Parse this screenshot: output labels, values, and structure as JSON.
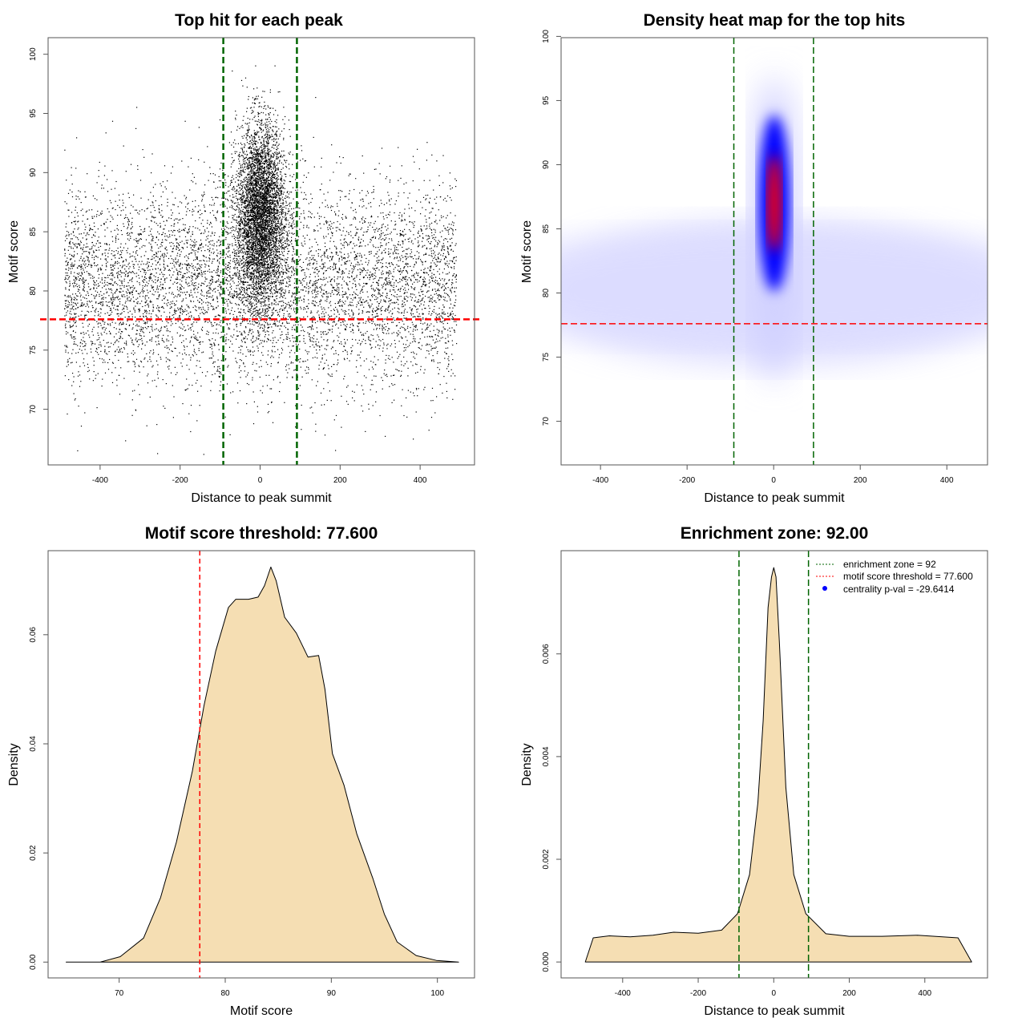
{
  "chart_data": [
    {
      "type": "scatter",
      "title": "Top hit for each peak",
      "xlabel": "Distance to peak summit",
      "ylabel": "Motif score",
      "xlim": [
        -530,
        536
      ],
      "ylim": [
        65.3,
        101.4
      ],
      "xticks": [
        -400,
        -200,
        0,
        200,
        400
      ],
      "yticks": [
        70,
        75,
        80,
        85,
        90,
        95,
        100
      ],
      "vlines": {
        "values": [
          -92,
          92
        ],
        "color": "#006400",
        "style": "dashed"
      },
      "hline": {
        "value": 77.6,
        "color": "#ff0000",
        "style": "dashed"
      }
    },
    {
      "type": "heatmap",
      "title": "Density heat map for the top hits",
      "xlabel": "Distance to peak summit",
      "ylabel": "Motif score",
      "xlim": [
        -491,
        494
      ],
      "ylim": [
        66.6,
        99.9
      ],
      "xticks": [
        -400,
        -200,
        0,
        200,
        400
      ],
      "yticks": [
        70,
        75,
        80,
        85,
        90,
        95,
        100
      ],
      "colors": [
        "#ffffff",
        "#0000ff",
        "#ff0000"
      ],
      "peak": {
        "x": 0,
        "y": 88.5
      },
      "vlines": {
        "values": [
          -92,
          92
        ],
        "color": "#006400",
        "style": "dashed"
      },
      "hline": {
        "value": 77.6,
        "color": "#ff0000",
        "style": "dashed"
      }
    },
    {
      "type": "area",
      "title": "Motif score threshold: 77.600",
      "xlabel": "Motif score",
      "ylabel": "Density",
      "xlim": [
        63.3,
        103.5
      ],
      "ylim": [
        -0.0029,
        0.0754
      ],
      "xticks": [
        70,
        80,
        90,
        100
      ],
      "yticks": [
        "0.00",
        "0.02",
        "0.04",
        "0.06"
      ],
      "fill": "#f5deb3",
      "x": [
        65,
        68.2,
        70.1,
        72.3,
        73.9,
        75.4,
        76.9,
        78,
        79.1,
        80.3,
        81,
        82.2,
        83.1,
        83.7,
        84.3,
        84.8,
        85.6,
        86.7,
        87.8,
        88.8,
        89.4,
        90.1,
        91.2,
        92.4,
        93.9,
        95,
        96.2,
        98,
        99.9,
        102
      ],
      "y": [
        0,
        0,
        0.001,
        0.0044,
        0.0118,
        0.022,
        0.035,
        0.047,
        0.057,
        0.065,
        0.0665,
        0.0665,
        0.0669,
        0.069,
        0.0724,
        0.0699,
        0.0632,
        0.0603,
        0.0559,
        0.0562,
        0.05,
        0.0382,
        0.0324,
        0.0235,
        0.0154,
        0.0088,
        0.0037,
        0.0012,
        0.0003,
        0
      ],
      "vline": {
        "value": 77.6,
        "color": "#ff0000",
        "style": "dashed"
      }
    },
    {
      "type": "area",
      "title": "Enrichment zone: 92.00",
      "xlabel": "Distance to peak summit",
      "ylabel": "Density",
      "xlim": [
        -563,
        566
      ],
      "ylim": [
        -0.00031,
        0.00801
      ],
      "xticks": [
        -400,
        -200,
        0,
        200,
        400
      ],
      "yticks": [
        "0.000",
        "0.002",
        "0.004",
        "0.006"
      ],
      "fill": "#f5deb3",
      "x": [
        -499,
        -478,
        -435,
        -380,
        -320,
        -265,
        -200,
        -138,
        -96,
        -64,
        -42,
        -28,
        -15,
        -6,
        0,
        6,
        15,
        32,
        53,
        85,
        138,
        200,
        287,
        380,
        488,
        524
      ],
      "y": [
        0,
        0.00047,
        0.00051,
        0.00049,
        0.00052,
        0.00058,
        0.00056,
        0.00062,
        0.00094,
        0.0017,
        0.0031,
        0.0047,
        0.0069,
        0.0075,
        0.00768,
        0.0075,
        0.0062,
        0.0034,
        0.0017,
        0.00094,
        0.00055,
        0.0005,
        0.0005,
        0.00052,
        0.00047,
        0
      ],
      "vlines": {
        "values": [
          -92,
          92
        ],
        "color": "#006400",
        "style": "dashed"
      },
      "legend": {
        "position": "top-right",
        "entries": [
          {
            "label": "enrichment zone = 92",
            "color": "#006400",
            "symbol": "dotted-line"
          },
          {
            "label": "motif score threshold = 77.600",
            "color": "#ff0000",
            "symbol": "dotted-line"
          },
          {
            "label": "centrality p-val = -29.6414",
            "color": "#0000ff",
            "symbol": "point"
          }
        ]
      }
    }
  ]
}
